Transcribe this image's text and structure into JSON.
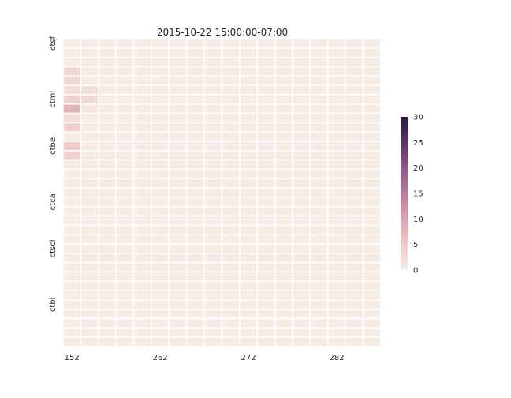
{
  "chart_data": {
    "type": "heatmap",
    "title": "2015-10-22 15:00:00-07:00",
    "xlabel": "",
    "ylabel": "",
    "n_rows": 33,
    "n_cols": 18,
    "x_tick_labels": [
      {
        "col": 0,
        "label": "152"
      },
      {
        "col": 5,
        "label": "262"
      },
      {
        "col": 10,
        "label": "272"
      },
      {
        "col": 15,
        "label": "282"
      }
    ],
    "y_tick_labels": [
      {
        "row": 0,
        "label": "ctsf"
      },
      {
        "row": 6,
        "label": "ctmi"
      },
      {
        "row": 11,
        "label": "ctbe"
      },
      {
        "row": 17,
        "label": "ctca"
      },
      {
        "row": 22,
        "label": "ctscl"
      },
      {
        "row": 28,
        "label": "ctbl"
      }
    ],
    "values": [
      [
        0,
        0,
        0,
        0,
        0,
        0,
        0,
        0,
        0,
        0,
        0,
        0,
        0,
        0,
        0,
        0,
        0,
        0
      ],
      [
        0,
        0,
        0,
        0,
        0,
        0,
        0,
        0,
        0,
        0,
        0,
        0,
        0,
        0,
        0,
        0,
        0,
        0
      ],
      [
        0,
        0,
        0,
        0,
        0,
        0,
        0,
        0,
        0,
        0,
        0,
        0,
        0,
        0,
        0,
        0,
        0,
        0
      ],
      [
        3,
        0,
        0,
        0,
        0,
        0,
        0,
        0,
        0,
        0,
        0,
        0,
        0,
        0,
        0,
        0,
        0,
        0
      ],
      [
        3,
        0,
        0,
        0,
        0,
        0,
        0,
        0,
        0,
        0,
        0,
        0,
        0,
        0,
        0,
        0,
        0,
        0
      ],
      [
        2,
        2,
        0,
        0,
        0,
        0,
        0,
        0,
        0,
        0,
        0,
        0,
        0,
        0,
        0,
        0,
        0,
        0
      ],
      [
        4,
        3,
        0,
        0,
        0,
        0,
        0,
        0,
        0,
        0,
        0,
        0,
        0,
        0,
        0,
        0,
        0,
        0
      ],
      [
        8,
        1,
        0,
        0,
        0,
        0,
        0,
        0,
        0,
        0,
        0,
        0,
        0,
        0,
        0,
        0,
        0,
        0
      ],
      [
        2,
        0,
        0,
        0,
        0,
        0,
        0,
        0,
        0,
        0,
        0,
        0,
        0,
        0,
        0,
        0,
        0,
        0
      ],
      [
        4,
        0,
        0,
        0,
        0,
        0,
        0,
        0,
        0,
        0,
        0,
        0,
        0,
        0,
        0,
        0,
        0,
        0
      ],
      [
        0,
        0,
        0,
        0,
        0,
        0,
        0,
        0,
        0,
        0,
        0,
        0,
        0,
        0,
        0,
        0,
        0,
        0
      ],
      [
        5,
        0,
        0,
        0,
        0,
        0,
        0,
        0,
        0,
        0,
        0,
        0,
        0,
        0,
        0,
        0,
        0,
        0
      ],
      [
        4,
        0,
        0,
        0,
        0,
        0,
        0,
        0,
        0,
        0,
        0,
        0,
        0,
        0,
        0,
        0,
        0,
        0
      ],
      [
        0,
        0,
        0,
        0,
        0,
        0,
        0,
        0,
        0,
        0,
        0,
        0,
        0,
        0,
        0,
        0,
        0,
        0
      ],
      [
        0,
        0,
        0,
        0,
        0,
        0,
        0,
        0,
        0,
        0,
        0,
        0,
        0,
        0,
        0,
        0,
        0,
        0
      ],
      [
        0,
        0,
        0,
        0,
        0,
        0,
        0,
        0,
        0,
        0,
        0,
        0,
        0,
        0,
        0,
        0,
        0,
        0
      ],
      [
        0,
        0,
        0,
        0,
        0,
        0,
        0,
        0,
        0,
        0,
        0,
        0,
        0,
        0,
        0,
        0,
        0,
        0
      ],
      [
        0,
        0,
        0,
        0,
        0,
        0,
        0,
        0,
        0,
        0,
        0,
        0,
        0,
        0,
        0,
        0,
        0,
        0
      ],
      [
        0,
        0,
        0,
        0,
        0,
        0,
        0,
        0,
        0,
        0,
        0,
        0,
        0,
        0,
        0,
        0,
        0,
        0
      ],
      [
        0,
        0,
        0,
        0,
        0,
        0,
        0,
        0,
        0,
        0,
        0,
        0,
        0,
        0,
        0,
        0,
        0,
        0
      ],
      [
        0,
        0,
        0,
        0,
        0,
        0,
        0,
        0,
        0,
        0,
        0,
        0,
        0,
        0,
        0,
        0,
        0,
        0
      ],
      [
        0,
        0,
        0,
        0,
        0,
        0,
        0,
        0,
        0,
        0,
        0,
        0,
        0,
        0,
        0,
        0,
        0,
        0
      ],
      [
        0,
        0,
        0,
        0,
        0,
        0,
        0,
        0,
        0,
        0,
        0,
        0,
        0,
        0,
        0,
        0,
        0,
        0
      ],
      [
        0,
        0,
        0,
        0,
        0,
        0,
        0,
        0,
        0,
        0,
        0,
        0,
        0,
        0,
        0,
        0,
        0,
        0
      ],
      [
        0,
        0,
        0,
        0,
        0,
        0,
        0,
        0,
        0,
        0,
        0,
        0,
        0,
        0,
        0,
        0,
        0,
        0
      ],
      [
        0,
        0,
        0,
        0,
        0,
        0,
        0,
        0,
        0,
        0,
        0,
        0,
        0,
        0,
        0,
        0,
        0,
        0
      ],
      [
        0,
        0,
        0,
        0,
        0,
        0,
        0,
        0,
        0,
        0,
        0,
        0,
        0,
        0,
        0,
        0,
        0,
        0
      ],
      [
        0,
        0,
        0,
        0,
        0,
        0,
        0,
        0,
        0,
        0,
        0,
        0,
        0,
        0,
        0,
        0,
        0,
        0
      ],
      [
        0,
        0,
        0,
        0,
        0,
        0,
        0,
        0,
        0,
        0,
        0,
        0,
        0,
        0,
        0,
        0,
        0,
        0
      ],
      [
        0,
        0,
        0,
        0,
        0,
        0,
        0,
        0,
        0,
        0,
        0,
        0,
        0,
        0,
        0,
        0,
        0,
        0
      ],
      [
        0,
        0,
        0,
        0,
        0,
        0,
        0,
        0,
        0,
        0,
        0,
        0,
        0,
        0,
        0,
        0,
        0,
        0
      ],
      [
        0,
        0,
        0,
        0,
        0,
        0,
        0,
        0,
        0,
        0,
        0,
        0,
        0,
        0,
        0,
        0,
        0,
        0
      ],
      [
        0,
        0,
        0,
        0,
        0,
        0,
        0,
        0,
        0,
        0,
        0,
        0,
        0,
        0,
        0,
        0,
        0,
        0
      ]
    ],
    "vmin": 0,
    "vmax": 30,
    "colorbar_ticks": [
      0,
      5,
      10,
      15,
      20,
      25,
      30
    ],
    "colormap": [
      "#f7ebe6",
      "#efcbc8",
      "#dba3b1",
      "#b97b9c",
      "#8e5684",
      "#5b3466",
      "#2b1b3f"
    ],
    "grid_line_color": "#ffffff"
  }
}
